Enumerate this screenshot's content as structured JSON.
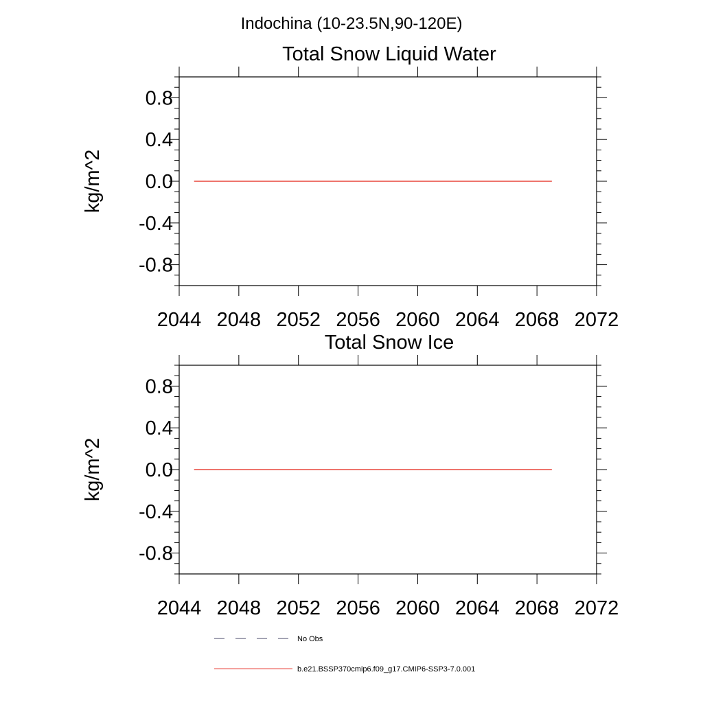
{
  "figure": {
    "title": "Indochina (10-23.5N,90-120E)"
  },
  "chart_data": [
    {
      "type": "line",
      "title": "Total Snow Liquid Water",
      "xlabel": "",
      "ylabel": "kg/m^2",
      "xlim": [
        2044,
        2072
      ],
      "ylim": [
        -1.0,
        1.0
      ],
      "x_ticks": [
        2044,
        2048,
        2052,
        2056,
        2060,
        2064,
        2068,
        2072
      ],
      "x_tick_labels": [
        "2044",
        "2048",
        "2052",
        "2056",
        "2060",
        "2064",
        "2068",
        "2072"
      ],
      "y_ticks": [
        0.8,
        0.4,
        0.0,
        -0.4,
        -0.8
      ],
      "y_tick_labels": [
        "0.8",
        "0.4",
        "0.0",
        "-0.4",
        "-0.8"
      ],
      "grid": false,
      "series": [
        {
          "name": "b.e21.BSSP370cmip6.f09_g17.CMIP6-SSP3-7.0.001",
          "color": "#e8463c",
          "x": [
            2045,
            2069
          ],
          "y": [
            0.0,
            0.0
          ]
        }
      ]
    },
    {
      "type": "line",
      "title": "Total Snow Ice",
      "xlabel": "",
      "ylabel": "kg/m^2",
      "xlim": [
        2044,
        2072
      ],
      "ylim": [
        -1.0,
        1.0
      ],
      "x_ticks": [
        2044,
        2048,
        2052,
        2056,
        2060,
        2064,
        2068,
        2072
      ],
      "x_tick_labels": [
        "2044",
        "2048",
        "2052",
        "2056",
        "2060",
        "2064",
        "2068",
        "2072"
      ],
      "y_ticks": [
        0.8,
        0.4,
        0.0,
        -0.4,
        -0.8
      ],
      "y_tick_labels": [
        "0.8",
        "0.4",
        "0.0",
        "-0.4",
        "-0.8"
      ],
      "grid": false,
      "series": [
        {
          "name": "b.e21.BSSP370cmip6.f09_g17.CMIP6-SSP3-7.0.001",
          "color": "#e8463c",
          "x": [
            2045,
            2069
          ],
          "y": [
            0.0,
            0.0
          ]
        }
      ]
    }
  ],
  "legend": {
    "placement": "bottom-center",
    "items": [
      {
        "label": "No Obs",
        "style": "dashed",
        "color": "#4a4a6a"
      },
      {
        "label": "b.e21.BSSP370cmip6.f09_g17.CMIP6-SSP3-7.0.001",
        "style": "solid",
        "color": "#e8463c"
      }
    ]
  }
}
